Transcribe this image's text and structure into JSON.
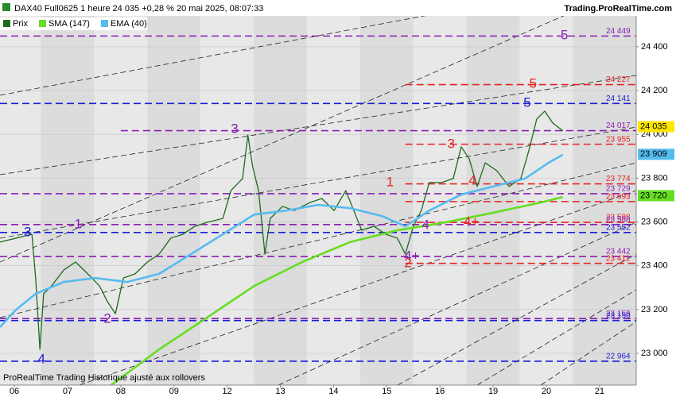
{
  "chart_data": {
    "type": "line",
    "title": "DAX40 Full0625 1 heure 24 035 +0,28 % 20 mai 2025, 08:07:33",
    "source": "Trading.ProRealTime.com",
    "footer": "ProRealTime Trading  Historique ajusté aux rollovers",
    "xlim": [
      -0.27,
      11.69
    ],
    "ylim": [
      22855,
      24541
    ],
    "xticks": [
      {
        "value": 0,
        "label": "06"
      },
      {
        "value": 1,
        "label": "07"
      },
      {
        "value": 2,
        "label": "08"
      },
      {
        "value": 3,
        "label": "09"
      },
      {
        "value": 4,
        "label": "12"
      },
      {
        "value": 5,
        "label": "13"
      },
      {
        "value": 6,
        "label": "14"
      },
      {
        "value": 7,
        "label": "15"
      },
      {
        "value": 8,
        "label": "16"
      },
      {
        "value": 9,
        "label": "19"
      },
      {
        "value": 10,
        "label": "20"
      },
      {
        "value": 11,
        "label": "21"
      }
    ],
    "yticks": [
      {
        "value": 23000,
        "label": "23 000"
      },
      {
        "value": 23200,
        "label": "23 200"
      },
      {
        "value": 23400,
        "label": "23 400"
      },
      {
        "value": 23600,
        "label": "23 600"
      },
      {
        "value": 23800,
        "label": "23 800"
      },
      {
        "value": 24000,
        "label": "24 000"
      },
      {
        "value": 24200,
        "label": "24 200"
      },
      {
        "value": 24400,
        "label": "24 400"
      }
    ],
    "series": [
      {
        "name": "Prix",
        "color": "#1e6b1e",
        "x": [
          -0.27,
          0.03,
          0.33,
          0.4,
          0.48,
          0.55,
          0.7,
          0.93,
          1.15,
          1.38,
          1.6,
          1.75,
          1.9,
          2.05,
          2.27,
          2.5,
          2.72,
          2.94,
          3.17,
          3.39,
          3.62,
          3.92,
          4.07,
          4.29,
          4.39,
          4.48,
          4.59,
          4.71,
          4.81,
          5.04,
          5.26,
          5.56,
          5.78,
          6.01,
          6.23,
          6.38,
          6.53,
          6.76,
          6.98,
          7.2,
          7.35,
          7.5,
          7.65,
          7.8,
          8.03,
          8.25,
          8.4,
          8.55,
          8.7,
          8.85,
          9.07,
          9.3,
          9.52,
          9.67,
          9.82,
          9.97,
          10.12,
          10.31
        ],
        "values": [
          23508,
          23526,
          23544,
          23344,
          23018,
          23272,
          23308,
          23381,
          23417,
          23363,
          23308,
          23236,
          23181,
          23344,
          23363,
          23417,
          23453,
          23526,
          23544,
          23580,
          23598,
          23616,
          23743,
          23798,
          23997,
          23852,
          23743,
          23453,
          23616,
          23671,
          23652,
          23689,
          23707,
          23652,
          23743,
          23652,
          23562,
          23580,
          23544,
          23526,
          23453,
          23580,
          23652,
          23780,
          23780,
          23798,
          23943,
          23889,
          23762,
          23870,
          23834,
          23762,
          23798,
          23925,
          24070,
          24106,
          24052,
          24016
        ]
      },
      {
        "name": "SMA (147)",
        "color": "#66dd22",
        "x": [
          1.82,
          2.72,
          3.62,
          4.51,
          5.41,
          6.31,
          7.2,
          8.1,
          9.0,
          9.9,
          10.31
        ],
        "values": [
          22855,
          23018,
          23163,
          23308,
          23417,
          23508,
          23562,
          23598,
          23642,
          23689,
          23714
        ]
      },
      {
        "name": "EMA (40)",
        "color": "#55bbf0",
        "x": [
          -0.27,
          0.03,
          0.4,
          0.93,
          1.52,
          2.12,
          2.72,
          3.32,
          3.92,
          4.51,
          5.11,
          5.71,
          6.31,
          6.91,
          7.35,
          7.8,
          8.4,
          9.0,
          9.6,
          10.04,
          10.31
        ],
        "values": [
          23120,
          23199,
          23272,
          23326,
          23344,
          23326,
          23363,
          23453,
          23544,
          23634,
          23652,
          23678,
          23663,
          23627,
          23580,
          23652,
          23725,
          23762,
          23798,
          23870,
          23907
        ]
      }
    ],
    "levels": [
      {
        "value": 24449,
        "label": "24 449",
        "color": "#8a1fb4",
        "start": -0.27
      },
      {
        "value": 24227,
        "label": "24 227",
        "color": "#e52222",
        "start": 7.35
      },
      {
        "value": 24141,
        "label": "24 141",
        "color": "#1c1cd8",
        "start": -0.27
      },
      {
        "value": 24017,
        "label": "24 017",
        "color": "#8a1fb4",
        "start": 2.0
      },
      {
        "value": 23955,
        "label": "23 955",
        "color": "#e52222",
        "start": 7.35
      },
      {
        "value": 23774,
        "label": "23 774",
        "color": "#e52222",
        "start": 7.35
      },
      {
        "value": 23729,
        "label": "23 729",
        "color": "#8a1fb4",
        "start": -0.27
      },
      {
        "value": 23693,
        "label": "23 693",
        "color": "#e52222",
        "start": 7.35
      },
      {
        "value": 23598,
        "label": "23 598",
        "color": "#e52222",
        "start": 7.35
      },
      {
        "value": 23588,
        "label": "23 588",
        "color": "#8a1fb4",
        "start": -0.27
      },
      {
        "value": 23552,
        "label": "23 552",
        "color": "#1c1cd8",
        "start": -0.27
      },
      {
        "value": 23442,
        "label": "23 442",
        "color": "#8a1fb4",
        "start": -0.27
      },
      {
        "value": 23411,
        "label": "23 411",
        "color": "#e52222",
        "start": 7.35
      },
      {
        "value": 23159,
        "label": "23 159",
        "color": "#8a1fb4",
        "start": -0.27
      },
      {
        "value": 23150,
        "label": "23 150",
        "color": "#1c1cd8",
        "start": -0.27
      },
      {
        "value": 22964,
        "label": "22 964",
        "color": "#1c1cd8",
        "start": -0.27
      }
    ],
    "price_labels": [
      {
        "value": 24035,
        "label": "24 035",
        "color": "#ffe600"
      },
      {
        "value": 23909,
        "label": "23 909",
        "color": "#55bbf0"
      },
      {
        "value": 23720,
        "label": "23 720",
        "color": "#66dd22"
      }
    ],
    "annotations": [
      {
        "text": "3",
        "color": "#1c1cd8",
        "x": 0.25,
        "y": 23551
      },
      {
        "text": "4",
        "color": "#1c1cd8",
        "x": 0.51,
        "y": 22971
      },
      {
        "text": "1",
        "color": "#8a1fb4",
        "x": 1.2,
        "y": 23588
      },
      {
        "text": "2",
        "color": "#8a1fb4",
        "x": 1.75,
        "y": 23156
      },
      {
        "text": "3",
        "color": "#8a1fb4",
        "x": 4.14,
        "y": 24023
      },
      {
        "text": "1",
        "color": "#e52222",
        "x": 7.06,
        "y": 23780
      },
      {
        "text": "2",
        "color": "#e52222",
        "x": 7.4,
        "y": 23410
      },
      {
        "text": "4",
        "color": "#8a1fb4",
        "x": 7.73,
        "y": 23584
      },
      {
        "text": "4+",
        "color": "#8a1fb4",
        "x": 7.47,
        "y": 23442
      },
      {
        "text": "3",
        "color": "#e52222",
        "x": 8.21,
        "y": 23954
      },
      {
        "text": "4",
        "color": "#e52222",
        "x": 8.61,
        "y": 23787
      },
      {
        "text": "4+",
        "color": "#e52222",
        "x": 8.59,
        "y": 23598
      },
      {
        "text": "5",
        "color": "#1c1cd8",
        "x": 9.64,
        "y": 24142
      },
      {
        "text": "5",
        "color": "#e52222",
        "x": 9.75,
        "y": 24230
      },
      {
        "text": "5",
        "color": "#8a1fb4",
        "x": 10.34,
        "y": 24451
      }
    ]
  }
}
